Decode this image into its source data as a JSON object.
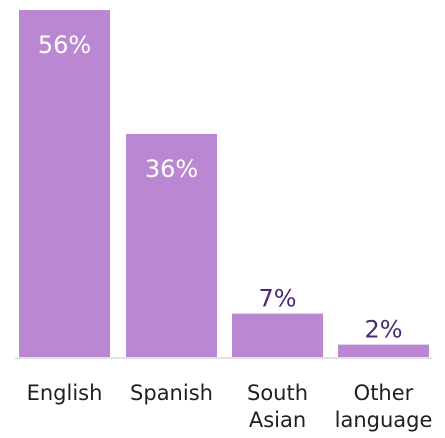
{
  "chart_data": {
    "type": "bar",
    "categories": [
      [
        "English"
      ],
      [
        "Spanish"
      ],
      [
        "South",
        "Asian"
      ],
      [
        "Other",
        "language"
      ]
    ],
    "values": [
      56,
      36,
      7,
      2
    ],
    "value_labels": [
      "56%",
      "36%",
      "7%",
      "2%"
    ],
    "ylim": [
      0,
      56
    ],
    "grid": false,
    "legend": "none",
    "colors": {
      "bar": "#bb87d3",
      "label_inside": "#ffffff",
      "label_outside": "#4b2b73",
      "axis": "#d7d7d7",
      "category_text": "#1f1f1f"
    }
  }
}
